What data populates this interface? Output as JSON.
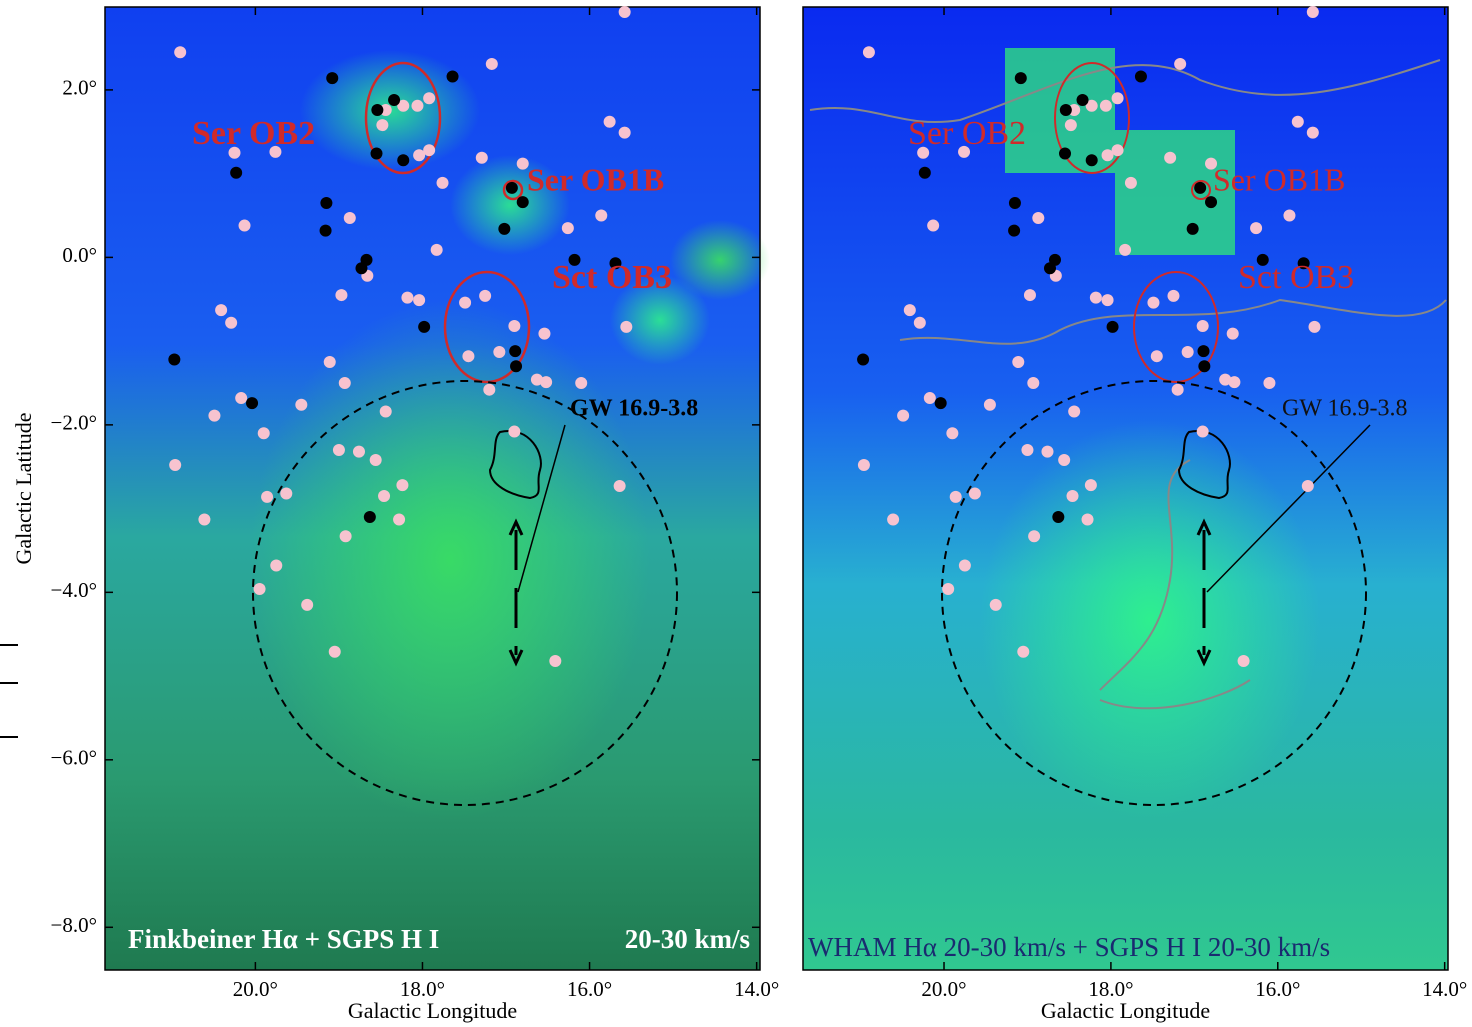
{
  "chart_data": [
    {
      "type": "scatter",
      "caption": [
        "Finkbeiner Hα + SGPS H I",
        "20-30 km/s"
      ],
      "annotations": [
        "Ser OB2",
        "Ser OB1B",
        "Sct OB3",
        "GW 16.9-3.8"
      ],
      "x_label": "Galactic Longitude",
      "y_label": "Galactic Latitude",
      "xlim": [
        21.8,
        13.96
      ],
      "ylim": [
        -8.51,
        2.99
      ],
      "xticks": [
        {
          "value": 20,
          "label": "20.0°"
        },
        {
          "value": 18,
          "label": "18.0°"
        },
        {
          "value": 16,
          "label": "16.0°"
        },
        {
          "value": 14,
          "label": "14.0°"
        }
      ],
      "yticks": [
        {
          "value": 2,
          "label": "2.0°"
        },
        {
          "value": 0,
          "label": "0.0°"
        },
        {
          "value": -2,
          "label": "−2.0°"
        },
        {
          "value": -4,
          "label": "−4.0°"
        },
        {
          "value": -6,
          "label": "−6.0°"
        },
        {
          "value": -8,
          "label": "−8.0°"
        }
      ],
      "series": [
        {
          "color": "#f7c3cf",
          "x": [
            20.9,
            20.25,
            19.76,
            20.13,
            20.41,
            20.29,
            18.97,
            19.11,
            19.45,
            20.17,
            20.49,
            19.9,
            20.96,
            20.61,
            19.86,
            19.63,
            19.75,
            19.95,
            19.38,
            19.05,
            18.92,
            18.46,
            18.28,
            18.24,
            18.56,
            18.76,
            19.0,
            18.44,
            18.93,
            18.66,
            18.18,
            18.04,
            17.83,
            17.76,
            17.49,
            17.45,
            17.25,
            17.2,
            16.9,
            17.08,
            16.63,
            16.52,
            16.54,
            16.1,
            15.86,
            15.76,
            15.58,
            15.58,
            17.17,
            17.29,
            16.8,
            16.26,
            15.56,
            16.41,
            15.64,
            18.44,
            18.23,
            18.06,
            18.48,
            17.92,
            18.04,
            17.92,
            18.87,
            16.9
          ],
          "y": [
            2.45,
            1.25,
            1.26,
            0.38,
            -0.63,
            -0.78,
            -0.45,
            -1.25,
            -1.76,
            -1.68,
            -1.89,
            -2.1,
            -2.48,
            -3.13,
            -2.86,
            -2.82,
            -3.68,
            -3.96,
            -4.15,
            -4.71,
            -3.33,
            -2.85,
            -3.13,
            -2.72,
            -2.42,
            -2.32,
            -2.3,
            -1.84,
            -1.5,
            -0.22,
            -0.48,
            -0.51,
            0.09,
            0.89,
            -0.54,
            -1.18,
            -0.46,
            -1.58,
            -0.82,
            -1.13,
            -1.46,
            -1.49,
            -0.91,
            -1.5,
            0.5,
            1.62,
            1.49,
            2.93,
            2.31,
            1.19,
            1.12,
            0.35,
            -0.83,
            -4.82,
            -2.73,
            1.76,
            1.81,
            1.81,
            1.58,
            1.28,
            1.22,
            1.9,
            0.47,
            -2.08
          ]
        },
        {
          "color": "#000000",
          "x": [
            19.08,
            17.64,
            18.54,
            18.34,
            18.55,
            18.23,
            20.23,
            19.15,
            19.16,
            18.67,
            18.73,
            16.8,
            17.02,
            16.93,
            16.18,
            15.69,
            17.98,
            16.89,
            16.88,
            20.97,
            20.04,
            18.63
          ],
          "y": [
            2.14,
            2.16,
            1.76,
            1.88,
            1.24,
            1.16,
            1.01,
            0.65,
            0.32,
            -0.03,
            -0.13,
            0.66,
            0.34,
            0.83,
            -0.03,
            -0.07,
            -0.83,
            -1.12,
            -1.3,
            -1.22,
            -1.74,
            -3.1
          ]
        }
      ]
    },
    {
      "type": "scatter",
      "caption": [
        "WHAM Hα 20-30 km/s + SGPS H I 20-30 km/s"
      ],
      "annotations": [
        "Ser OB2",
        "Ser OB1B",
        "Sct OB3",
        "GW 16.9-3.8"
      ],
      "x_label": "Galactic Longitude",
      "xlim": [
        21.69,
        13.96
      ],
      "ylim": [
        -8.51,
        2.99
      ],
      "xticks": [
        {
          "value": 20,
          "label": "20.0°"
        },
        {
          "value": 18,
          "label": "18.0°"
        },
        {
          "value": 16,
          "label": "16.0°"
        },
        {
          "value": 14,
          "label": "14.0°"
        }
      ],
      "series": [
        {
          "color": "#f7c3cf",
          "x": [
            20.9,
            20.25,
            19.76,
            20.13,
            20.41,
            20.29,
            18.97,
            19.11,
            19.45,
            20.17,
            20.49,
            19.9,
            20.96,
            20.61,
            19.86,
            19.63,
            19.75,
            19.95,
            19.38,
            19.05,
            18.92,
            18.46,
            18.28,
            18.24,
            18.56,
            18.76,
            19.0,
            18.44,
            18.93,
            18.66,
            18.18,
            18.04,
            17.83,
            17.76,
            17.49,
            17.45,
            17.25,
            17.2,
            16.9,
            17.08,
            16.63,
            16.52,
            16.54,
            16.1,
            15.86,
            15.76,
            15.58,
            15.58,
            17.17,
            17.29,
            16.8,
            16.26,
            15.56,
            16.41,
            15.64,
            18.44,
            18.23,
            18.06,
            18.48,
            17.92,
            18.04,
            17.92,
            18.87,
            16.9
          ],
          "y": [
            2.45,
            1.25,
            1.26,
            0.38,
            -0.63,
            -0.78,
            -0.45,
            -1.25,
            -1.76,
            -1.68,
            -1.89,
            -2.1,
            -2.48,
            -3.13,
            -2.86,
            -2.82,
            -3.68,
            -3.96,
            -4.15,
            -4.71,
            -3.33,
            -2.85,
            -3.13,
            -2.72,
            -2.42,
            -2.32,
            -2.3,
            -1.84,
            -1.5,
            -0.22,
            -0.48,
            -0.51,
            0.09,
            0.89,
            -0.54,
            -1.18,
            -0.46,
            -1.58,
            -0.82,
            -1.13,
            -1.46,
            -1.49,
            -0.91,
            -1.5,
            0.5,
            1.62,
            1.49,
            2.93,
            2.31,
            1.19,
            1.12,
            0.35,
            -0.83,
            -4.82,
            -2.73,
            1.76,
            1.81,
            1.81,
            1.58,
            1.28,
            1.22,
            1.9,
            0.47,
            -2.08
          ]
        },
        {
          "color": "#000000",
          "x": [
            19.08,
            17.64,
            18.54,
            18.34,
            18.55,
            18.23,
            20.23,
            19.15,
            19.16,
            18.67,
            18.73,
            16.8,
            17.02,
            16.93,
            16.18,
            15.69,
            17.98,
            16.89,
            16.88,
            20.97,
            20.04,
            18.63
          ],
          "y": [
            2.14,
            2.16,
            1.76,
            1.88,
            1.24,
            1.16,
            1.01,
            0.65,
            0.32,
            -0.03,
            -0.13,
            0.66,
            0.34,
            0.83,
            -0.03,
            -0.07,
            -0.83,
            -1.12,
            -1.3,
            -1.22,
            -1.74,
            -3.1
          ]
        }
      ]
    }
  ]
}
